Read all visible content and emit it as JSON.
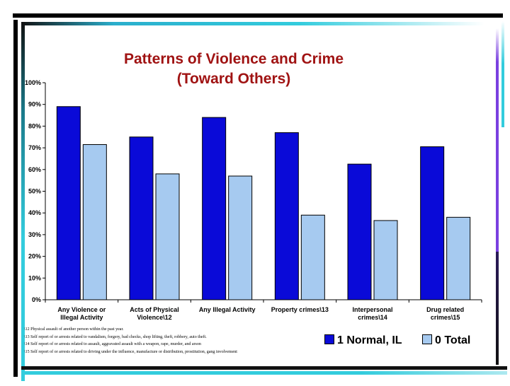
{
  "chart_data": {
    "type": "bar",
    "title": [
      "Patterns of Violence and Crime",
      "(Toward Others)"
    ],
    "categories": [
      [
        "Any Violence or",
        "Illegal Activity"
      ],
      [
        "Acts of Physical",
        "Violence\\12"
      ],
      [
        "Any Illegal Activity"
      ],
      [
        "Property crimes\\13"
      ],
      [
        "Interpersonal",
        "crimes\\14"
      ],
      [
        "Drug related",
        "crimes\\15"
      ]
    ],
    "series": [
      {
        "name": "1 Normal, IL",
        "color": "#0a0ad8",
        "values": [
          89,
          75,
          84,
          77,
          62.5,
          70.5
        ]
      },
      {
        "name": "0 Total",
        "color": "#a6caf0",
        "values": [
          71.5,
          58,
          57,
          39,
          36.5,
          38
        ]
      }
    ],
    "y_ticks": [
      "0%",
      "10%",
      "20%",
      "30%",
      "40%",
      "50%",
      "60%",
      "70%",
      "80%",
      "90%",
      "100%"
    ],
    "ylim": [
      0,
      100
    ],
    "grid": false,
    "legend_position": "bottom-right"
  },
  "footnotes": [
    "\\12  Physical assault of another person within the past year.",
    "\\13  Self report of or arrests related to vandalism, forgery, bad checks, shop lifting, theft, robbery, auto theft.",
    "\\14 Self report of or arrests related to  assault, aggravated assault with a weapon, rape, murder, and arson",
    "\\15 Self report of or arrests related to  driving under the influence, manufacture or distribution, prostitution, gang involvement"
  ],
  "colors": {
    "title": "#a01313",
    "frame_dark": "#000000",
    "frame_accent": "#33ccdd",
    "frame_purple": "#7a40e0"
  }
}
